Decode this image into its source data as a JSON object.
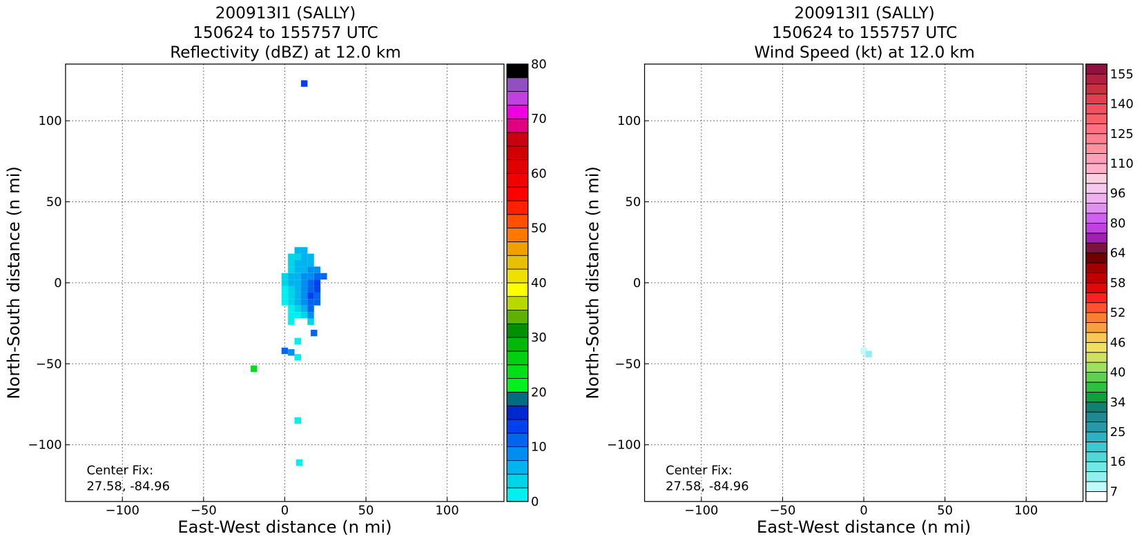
{
  "chart_data": [
    {
      "type": "heatmap",
      "title": [
        "200913I1 (SALLY)",
        "150624 to 155757 UTC",
        "Reflectivity (dBZ) at 12.0 km"
      ],
      "x_label": "East-West distance (n mi)",
      "y_label": "North-South distance (n mi)",
      "annotation": [
        "Center Fix:",
        "27.58, -84.96"
      ],
      "xlim": [
        -135,
        135
      ],
      "ylim": [
        -135,
        135
      ],
      "xticks": [
        {
          "value": -100,
          "label": "−100"
        },
        {
          "value": -50,
          "label": "−50"
        },
        0,
        50,
        100
      ],
      "yticks": [
        {
          "value": -100,
          "label": "−100"
        },
        {
          "value": -50,
          "label": "−50"
        },
        0,
        50,
        100
      ],
      "grid": true,
      "cells": {
        "x": [
          8,
          12,
          4,
          8,
          12,
          16,
          4,
          8,
          12,
          16,
          4,
          8,
          12,
          16,
          20,
          0,
          4,
          8,
          12,
          16,
          20,
          24,
          0,
          4,
          8,
          12,
          16,
          20,
          0,
          4,
          8,
          12,
          16,
          20,
          0,
          4,
          8,
          12,
          16,
          20,
          0,
          4,
          8,
          12,
          16,
          20,
          4,
          8,
          12,
          16,
          4,
          8,
          12,
          16,
          4,
          16,
          18,
          8,
          0,
          4,
          8,
          -19,
          8,
          9,
          12
        ],
        "y": [
          20,
          20,
          16,
          16,
          16,
          16,
          12,
          12,
          12,
          12,
          8,
          8,
          8,
          8,
          8,
          4,
          4,
          4,
          4,
          4,
          4,
          4,
          0,
          0,
          0,
          0,
          0,
          0,
          -4,
          -4,
          -4,
          -4,
          -4,
          -4,
          -8,
          -8,
          -8,
          -8,
          -8,
          -8,
          -12,
          -12,
          -12,
          -12,
          -12,
          -12,
          -16,
          -16,
          -16,
          -16,
          -20,
          -20,
          -20,
          -20,
          -24,
          -24,
          -31,
          -36,
          -42,
          -43,
          -46,
          -53,
          -85,
          -111,
          123
        ],
        "values": [
          5,
          5,
          4,
          4,
          5,
          6,
          3,
          5,
          6,
          7,
          3,
          6,
          7,
          8,
          8,
          3,
          5,
          7,
          9,
          9,
          12,
          10,
          3,
          5,
          7,
          9,
          11,
          13,
          2,
          4,
          7,
          9,
          12,
          13,
          2,
          4,
          6,
          9,
          13,
          12,
          2,
          3,
          5,
          8,
          12,
          11,
          2,
          3,
          6,
          10,
          1,
          2,
          4,
          8,
          1,
          3,
          12,
          2,
          12,
          9,
          2,
          23,
          2,
          1,
          14
        ]
      },
      "colorbar": {
        "levels": [
          0,
          2.5,
          5,
          7.5,
          10,
          12.5,
          15,
          17.5,
          20,
          22.5,
          25,
          27.5,
          30,
          32.5,
          35,
          37.5,
          40,
          42.5,
          45,
          47.5,
          50,
          52.5,
          55,
          57.5,
          60,
          62.5,
          65,
          67.5,
          70,
          72.5,
          75,
          77.5,
          80
        ],
        "colors": [
          "#00f0f0",
          "#00d4e8",
          "#00b4f0",
          "#008ef0",
          "#0066f0",
          "#0040f0",
          "#0028d0",
          "#006e80",
          "#00f020",
          "#00e018",
          "#00d010",
          "#00b808",
          "#009000",
          "#60b000",
          "#b8d800",
          "#ffff00",
          "#f0e000",
          "#e8c000",
          "#f0a000",
          "#ff7800",
          "#ff5000",
          "#ff2000",
          "#ff0000",
          "#f00000",
          "#e00000",
          "#d00000",
          "#c80010",
          "#e00080",
          "#f000e0",
          "#c040e0",
          "#9050c0",
          "#000000"
        ],
        "ticks": [
          0,
          10,
          20,
          30,
          40,
          50,
          60,
          70,
          80
        ]
      }
    },
    {
      "type": "heatmap",
      "title": [
        "200913I1 (SALLY)",
        "150624 to 155757 UTC",
        "Wind Speed (kt) at 12.0 km"
      ],
      "x_label": "East-West distance (n mi)",
      "y_label": "North-South distance (n mi)",
      "annotation": [
        "Center Fix:",
        "27.58, -84.96"
      ],
      "xlim": [
        -135,
        135
      ],
      "ylim": [
        -135,
        135
      ],
      "xticks": [
        {
          "value": -100,
          "label": "−100"
        },
        {
          "value": -50,
          "label": "−50"
        },
        0,
        50,
        100
      ],
      "yticks": [
        {
          "value": -100,
          "label": "−100"
        },
        {
          "value": -50,
          "label": "−50"
        },
        0,
        50,
        100
      ],
      "grid": true,
      "cells": {
        "x": [
          0,
          3
        ],
        "y": [
          -42,
          -44
        ],
        "values": [
          9,
          12
        ]
      },
      "colorbar": {
        "levels": [
          7,
          10,
          13,
          16,
          19,
          22,
          25,
          28,
          31,
          34,
          36,
          38,
          40,
          42,
          44,
          46,
          48,
          50,
          52,
          54,
          56,
          58,
          60,
          62,
          64,
          69,
          75,
          80,
          85,
          91,
          96,
          101,
          105,
          110,
          115,
          120,
          125,
          130,
          135,
          140,
          145,
          150,
          155
        ],
        "colors": [
          "#ffffff",
          "#c0fafa",
          "#90f0f0",
          "#70e8e8",
          "#50d8d8",
          "#40c8d0",
          "#30b0c0",
          "#2898a8",
          "#208890",
          "#108070",
          "#10a040",
          "#30c040",
          "#60d050",
          "#a0e060",
          "#d0e060",
          "#f0e060",
          "#f8c850",
          "#f8a040",
          "#f88030",
          "#ff5030",
          "#ff2020",
          "#e00808",
          "#c00000",
          "#a00000",
          "#700000",
          "#801040",
          "#a020b0",
          "#c040e0",
          "#d060f0",
          "#e090f0",
          "#f0b0f0",
          "#f8c8f0",
          "#f8d0e0",
          "#ffb0c8",
          "#ffa0b8",
          "#ff90a0",
          "#ff8090",
          "#ff7080",
          "#f86068",
          "#f05060",
          "#e04050",
          "#c83040",
          "#b02040",
          "#901040"
        ],
        "ticks": [
          7,
          16,
          25,
          34,
          40,
          46,
          52,
          58,
          64,
          80,
          96,
          110,
          125,
          140,
          155
        ]
      }
    }
  ]
}
